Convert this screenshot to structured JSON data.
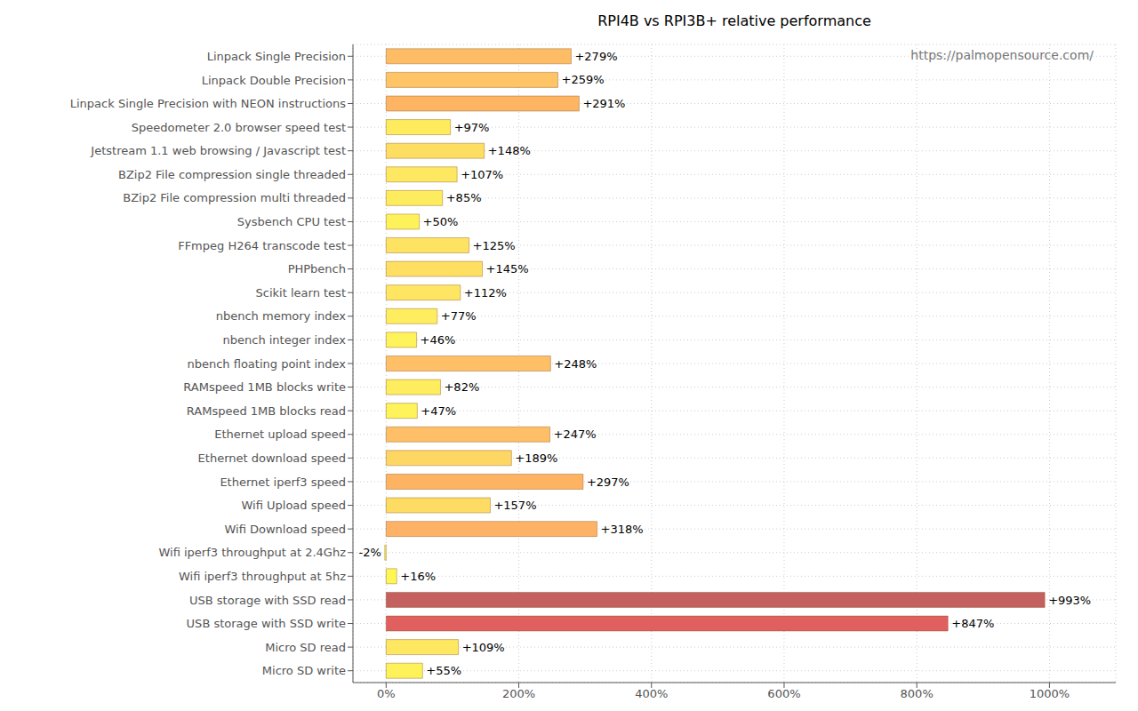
{
  "chart_data": {
    "type": "bar",
    "title": "RPI4B vs RPI3B+ relative performance",
    "annotations": [
      "https://palmopensource.com/"
    ],
    "orientation": "horizontal",
    "categories": [
      "Linpack Single Precision",
      "Linpack Double Precision",
      "Linpack Single Precision with NEON instructions",
      "Speedometer 2.0 browser speed test",
      "Jetstream 1.1 web browsing / Javascript test",
      "BZip2 File compression single threaded",
      "BZip2 File compression multi threaded",
      "Sysbench CPU test",
      "FFmpeg H264 transcode test",
      "PHPbench",
      "Scikit learn test",
      "nbench memory index",
      "nbench integer index",
      "nbench floating point index",
      "RAMspeed 1MB blocks write",
      "RAMspeed 1MB blocks read",
      "Ethernet upload speed",
      "Ethernet download speed",
      "Ethernet iperf3 speed",
      "Wifi Upload speed",
      "Wifi Download speed",
      "Wifi iperf3 throughput at 2.4Ghz",
      "Wifi iperf3 throughput at 5hz",
      "USB storage with SSD read",
      "USB storage with SSD write",
      "Micro SD read",
      "Micro SD write"
    ],
    "values": [
      279,
      259,
      291,
      97,
      148,
      107,
      85,
      50,
      125,
      145,
      112,
      77,
      46,
      248,
      82,
      47,
      247,
      189,
      297,
      157,
      318,
      -2,
      16,
      993,
      847,
      109,
      55
    ],
    "value_labels": [
      "+279%",
      "+259%",
      "+291%",
      "+97%",
      "+148%",
      "+107%",
      "+85%",
      "+50%",
      "+125%",
      "+145%",
      "+112%",
      "+77%",
      "+46%",
      "+248%",
      "+82%",
      "+47%",
      "+247%",
      "+189%",
      "+297%",
      "+157%",
      "+318%",
      "-2%",
      "+16%",
      "+993%",
      "+847%",
      "+109%",
      "+55%"
    ],
    "colors": [
      "#febc65",
      "#fec466",
      "#feb563",
      "#feeb5e",
      "#fede62",
      "#fee861",
      "#feec5f",
      "#fef25a",
      "#fee362",
      "#fedf62",
      "#fee662",
      "#feee5f",
      "#fef35a",
      "#febf66",
      "#feed5f",
      "#fef35a",
      "#febf66",
      "#fed664",
      "#feb362",
      "#fedc63",
      "#feb266",
      "#fffa50",
      "#fef755",
      "#c46160",
      "#e06060",
      "#fee761",
      "#fef25a"
    ],
    "xlim": [
      -50,
      1100
    ],
    "xticks": [
      {
        "value": 0,
        "label": "0%"
      },
      {
        "value": 200,
        "label": "200%"
      },
      {
        "value": 400,
        "label": "400%"
      },
      {
        "value": 600,
        "label": "600%"
      },
      {
        "value": 800,
        "label": "800%"
      },
      {
        "value": 1000,
        "label": "1000%"
      }
    ],
    "grid": true,
    "data_labels": true
  }
}
